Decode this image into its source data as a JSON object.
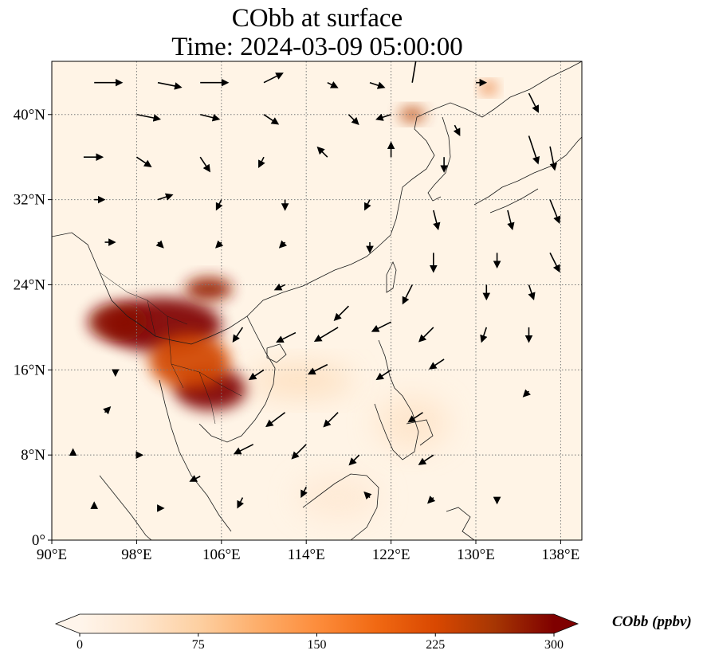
{
  "title": {
    "line1": "CObb at surface",
    "line2": "Time: 2024-03-09 05:00:00"
  },
  "map": {
    "lon_range": [
      90,
      140
    ],
    "lat_range": [
      0,
      45
    ],
    "lon_ticks": [
      {
        "value": 90,
        "label": "90°E"
      },
      {
        "value": 98,
        "label": "98°E"
      },
      {
        "value": 106,
        "label": "106°E"
      },
      {
        "value": 114,
        "label": "114°E"
      },
      {
        "value": 122,
        "label": "122°E"
      },
      {
        "value": 130,
        "label": "130°E"
      },
      {
        "value": 138,
        "label": "138°E"
      }
    ],
    "lat_ticks": [
      {
        "value": 0,
        "label": "0°"
      },
      {
        "value": 8,
        "label": "8°N"
      },
      {
        "value": 16,
        "label": "16°N"
      },
      {
        "value": 24,
        "label": "24°N"
      },
      {
        "value": 32,
        "label": "32°N"
      },
      {
        "value": 40,
        "label": "40°N"
      }
    ],
    "gridlines": true,
    "colors": {
      "background": "#fff4e6",
      "coastline": "#1a1a1a",
      "gridline": "#7a7a7a",
      "low": "#fff5eb",
      "high": "#7f0000"
    },
    "plumes": [
      {
        "name": "indochina-plume-dark",
        "lon": 100.5,
        "lat": 20.2,
        "rx_deg": 5.5,
        "ry_deg": 2.6,
        "value": 300
      },
      {
        "name": "myanmar-plume",
        "lon": 96.2,
        "lat": 20.5,
        "rx_deg": 2.8,
        "ry_deg": 1.8,
        "value": 290
      },
      {
        "name": "laos-plume",
        "lon": 104.8,
        "lat": 23.6,
        "rx_deg": 2.2,
        "ry_deg": 1.1,
        "value": 280
      },
      {
        "name": "cambodia-plume",
        "lon": 105.0,
        "lat": 14.2,
        "rx_deg": 3.4,
        "ry_deg": 2.0,
        "value": 300
      },
      {
        "name": "thailand-plume",
        "lon": 103.0,
        "lat": 16.8,
        "rx_deg": 3.8,
        "ry_deg": 2.6,
        "value": 230
      },
      {
        "name": "shandong-plume",
        "lon": 124.0,
        "lat": 40.0,
        "rx_deg": 1.2,
        "ry_deg": 0.6,
        "value": 250
      },
      {
        "name": "vladivostok-plume",
        "lon": 131.2,
        "lat": 42.5,
        "rx_deg": 0.7,
        "ry_deg": 0.5,
        "value": 210
      },
      {
        "name": "scs-haze",
        "lon": 113.5,
        "lat": 15.0,
        "rx_deg": 5.0,
        "ry_deg": 1.5,
        "value": 60
      },
      {
        "name": "philippine-haze",
        "lon": 124.0,
        "lat": 11.0,
        "rx_deg": 3.5,
        "ry_deg": 2.5,
        "value": 45
      },
      {
        "name": "borneo-haze",
        "lon": 117.0,
        "lat": 4.0,
        "rx_deg": 4.0,
        "ry_deg": 2.0,
        "value": 35
      }
    ],
    "wind_vectors": [
      {
        "lon": 94,
        "lat": 43,
        "u": 6,
        "v": 0
      },
      {
        "lon": 100,
        "lat": 43,
        "u": 5,
        "v": -1
      },
      {
        "lon": 104,
        "lat": 43,
        "u": 6,
        "v": 0
      },
      {
        "lon": 110,
        "lat": 43,
        "u": 4,
        "v": 2
      },
      {
        "lon": 116,
        "lat": 43,
        "u": 2,
        "v": -1
      },
      {
        "lon": 120,
        "lat": 43,
        "u": 3,
        "v": -1
      },
      {
        "lon": 124,
        "lat": 43,
        "u": 1,
        "v": 6
      },
      {
        "lon": 130,
        "lat": 43,
        "u": 2,
        "v": 0
      },
      {
        "lon": 135,
        "lat": 42,
        "u": 2,
        "v": -4
      },
      {
        "lon": 98,
        "lat": 40,
        "u": 5,
        "v": -1
      },
      {
        "lon": 104,
        "lat": 40,
        "u": 4,
        "v": -1
      },
      {
        "lon": 110,
        "lat": 40,
        "u": 3,
        "v": -2
      },
      {
        "lon": 118,
        "lat": 40,
        "u": 2,
        "v": -2
      },
      {
        "lon": 122,
        "lat": 40,
        "u": -3,
        "v": -1
      },
      {
        "lon": 128,
        "lat": 39,
        "u": 1,
        "v": -2
      },
      {
        "lon": 135,
        "lat": 38,
        "u": 2,
        "v": -6
      },
      {
        "lon": 93,
        "lat": 36,
        "u": 4,
        "v": 0
      },
      {
        "lon": 98,
        "lat": 36,
        "u": 3,
        "v": -2
      },
      {
        "lon": 104,
        "lat": 36,
        "u": 2,
        "v": -3
      },
      {
        "lon": 110,
        "lat": 36,
        "u": -1,
        "v": -2
      },
      {
        "lon": 116,
        "lat": 36,
        "u": -2,
        "v": 2
      },
      {
        "lon": 122,
        "lat": 36,
        "u": 0,
        "v": 3
      },
      {
        "lon": 127,
        "lat": 36,
        "u": 0,
        "v": -3
      },
      {
        "lon": 137,
        "lat": 37,
        "u": 1,
        "v": -5
      },
      {
        "lon": 94,
        "lat": 32,
        "u": 2,
        "v": 0
      },
      {
        "lon": 100,
        "lat": 32,
        "u": 3,
        "v": 1
      },
      {
        "lon": 106,
        "lat": 32,
        "u": -1,
        "v": -2
      },
      {
        "lon": 112,
        "lat": 32,
        "u": 0,
        "v": -2
      },
      {
        "lon": 120,
        "lat": 32,
        "u": -1,
        "v": -2
      },
      {
        "lon": 126,
        "lat": 31,
        "u": 1,
        "v": -4
      },
      {
        "lon": 133,
        "lat": 31,
        "u": 1,
        "v": -4
      },
      {
        "lon": 137,
        "lat": 32,
        "u": 2,
        "v": -5
      },
      {
        "lon": 95,
        "lat": 28,
        "u": 2,
        "v": 0
      },
      {
        "lon": 100,
        "lat": 28,
        "u": 1,
        "v": -1
      },
      {
        "lon": 106,
        "lat": 28,
        "u": -1,
        "v": -1
      },
      {
        "lon": 112,
        "lat": 28,
        "u": -1,
        "v": -1
      },
      {
        "lon": 120,
        "lat": 28,
        "u": 0,
        "v": -2
      },
      {
        "lon": 126,
        "lat": 27,
        "u": 0,
        "v": -4
      },
      {
        "lon": 132,
        "lat": 27,
        "u": 0,
        "v": -3
      },
      {
        "lon": 137,
        "lat": 27,
        "u": 2,
        "v": -4
      },
      {
        "lon": 112,
        "lat": 24,
        "u": -2,
        "v": -1
      },
      {
        "lon": 118,
        "lat": 22,
        "u": -3,
        "v": -3
      },
      {
        "lon": 124,
        "lat": 24,
        "u": -2,
        "v": -4
      },
      {
        "lon": 131,
        "lat": 24,
        "u": 0,
        "v": -3
      },
      {
        "lon": 135,
        "lat": 24,
        "u": 1,
        "v": -3
      },
      {
        "lon": 108,
        "lat": 20,
        "u": -2,
        "v": -3
      },
      {
        "lon": 113,
        "lat": 19.5,
        "u": -4,
        "v": -2
      },
      {
        "lon": 117,
        "lat": 20,
        "u": -5,
        "v": -3
      },
      {
        "lon": 122,
        "lat": 20.5,
        "u": -4,
        "v": -2
      },
      {
        "lon": 126,
        "lat": 20,
        "u": -3,
        "v": -3
      },
      {
        "lon": 131,
        "lat": 20,
        "u": -1,
        "v": -3
      },
      {
        "lon": 135,
        "lat": 20,
        "u": 0,
        "v": -3
      },
      {
        "lon": 110,
        "lat": 16,
        "u": -3,
        "v": -2
      },
      {
        "lon": 116,
        "lat": 16.5,
        "u": -4,
        "v": -2
      },
      {
        "lon": 122,
        "lat": 16,
        "u": -3,
        "v": -2
      },
      {
        "lon": 127,
        "lat": 17,
        "u": -3,
        "v": -2
      },
      {
        "lon": 135,
        "lat": 14,
        "u": -1,
        "v": -1
      },
      {
        "lon": 112,
        "lat": 12,
        "u": -4,
        "v": -3
      },
      {
        "lon": 117,
        "lat": 12,
        "u": -3,
        "v": -3
      },
      {
        "lon": 125,
        "lat": 12,
        "u": -3,
        "v": -2
      },
      {
        "lon": 109,
        "lat": 9,
        "u": -4,
        "v": -2
      },
      {
        "lon": 114,
        "lat": 9,
        "u": -3,
        "v": -3
      },
      {
        "lon": 119,
        "lat": 8,
        "u": -2,
        "v": -2
      },
      {
        "lon": 126,
        "lat": 8,
        "u": -3,
        "v": -2
      },
      {
        "lon": 95,
        "lat": 12,
        "u": 1,
        "v": 1
      },
      {
        "lon": 98,
        "lat": 8,
        "u": 1,
        "v": 0
      },
      {
        "lon": 92,
        "lat": 8,
        "u": 0,
        "v": 1
      },
      {
        "lon": 96,
        "lat": 16,
        "u": 0,
        "v": -1
      },
      {
        "lon": 104,
        "lat": 6,
        "u": -2,
        "v": -1
      },
      {
        "lon": 108,
        "lat": 4,
        "u": -1,
        "v": -2
      },
      {
        "lon": 114,
        "lat": 5,
        "u": -1,
        "v": -2
      },
      {
        "lon": 120,
        "lat": 4,
        "u": -1,
        "v": 1
      },
      {
        "lon": 126,
        "lat": 4,
        "u": -1,
        "v": -1
      },
      {
        "lon": 132,
        "lat": 4,
        "u": 0,
        "v": -1
      },
      {
        "lon": 100,
        "lat": 3,
        "u": 1,
        "v": 0
      },
      {
        "lon": 94,
        "lat": 3,
        "u": 0,
        "v": 1
      }
    ]
  },
  "colorbar": {
    "title": "CObb (ppbv)",
    "ticks": [
      {
        "value": 0,
        "label": "0"
      },
      {
        "value": 75,
        "label": "75"
      },
      {
        "value": 150,
        "label": "150"
      },
      {
        "value": 225,
        "label": "225"
      },
      {
        "value": 300,
        "label": "300"
      }
    ],
    "range": [
      0,
      300
    ],
    "extend": "both",
    "stops": [
      "#fff5eb",
      "#fee6ce",
      "#fdd0a2",
      "#fdae6b",
      "#fd8d3c",
      "#f16913",
      "#d94801",
      "#a63603",
      "#7f0000"
    ]
  }
}
